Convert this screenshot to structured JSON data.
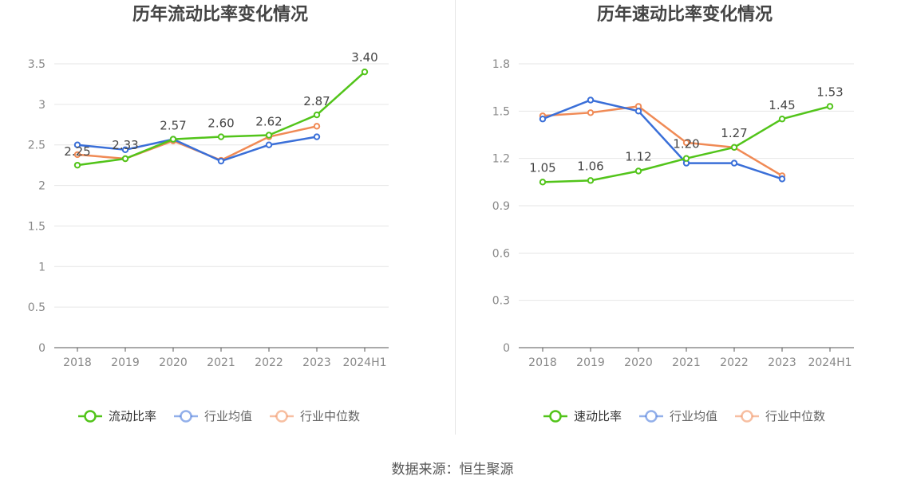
{
  "source": "数据来源：恒生聚源",
  "colors": {
    "main": "#52c41a",
    "avg": "#3a6fd8",
    "median": "#f08a55",
    "grid": "#e6e6e6",
    "axis": "#555555",
    "tick": "#888888",
    "title": "#444444"
  },
  "chart_data": [
    {
      "type": "line",
      "title": "历年流动比率变化情况",
      "categories": [
        "2018",
        "2019",
        "2020",
        "2021",
        "2022",
        "2023",
        "2024H1"
      ],
      "ylim": [
        0,
        3.5
      ],
      "yticks": [
        "0",
        "0.5",
        "1",
        "1.5",
        "2",
        "2.5",
        "3",
        "3.5"
      ],
      "grid": true,
      "legend_position": "bottom",
      "series": [
        {
          "name": "流动比率",
          "values": [
            2.25,
            2.33,
            2.57,
            2.6,
            2.62,
            2.87,
            3.4
          ],
          "labels": [
            "2.25",
            "2.33",
            "2.57",
            "2.60",
            "2.62",
            "2.87",
            "3.40"
          ],
          "color": "#52c41a"
        },
        {
          "name": "行业均值",
          "values": [
            2.5,
            2.44,
            2.57,
            2.3,
            2.5,
            2.6,
            null
          ],
          "color": "#3a6fd8"
        },
        {
          "name": "行业中位数",
          "values": [
            2.38,
            2.33,
            2.55,
            2.31,
            2.6,
            2.73,
            null
          ],
          "color": "#f08a55"
        }
      ]
    },
    {
      "type": "line",
      "title": "历年速动比率变化情况",
      "categories": [
        "2018",
        "2019",
        "2020",
        "2021",
        "2022",
        "2023",
        "2024H1"
      ],
      "ylim": [
        0,
        1.8
      ],
      "yticks": [
        "0",
        "0.3",
        "0.6",
        "0.9",
        "1.2",
        "1.5",
        "1.8"
      ],
      "grid": true,
      "legend_position": "bottom",
      "series": [
        {
          "name": "速动比率",
          "values": [
            1.05,
            1.06,
            1.12,
            1.2,
            1.27,
            1.45,
            1.53
          ],
          "labels": [
            "1.05",
            "1.06",
            "1.12",
            "1.20",
            "1.27",
            "1.45",
            "1.53"
          ],
          "color": "#52c41a"
        },
        {
          "name": "行业均值",
          "values": [
            1.45,
            1.57,
            1.5,
            1.17,
            1.17,
            1.07,
            null
          ],
          "color": "#3a6fd8"
        },
        {
          "name": "行业中位数",
          "values": [
            1.47,
            1.49,
            1.53,
            1.3,
            1.27,
            1.09,
            null
          ],
          "color": "#f08a55"
        }
      ]
    }
  ]
}
